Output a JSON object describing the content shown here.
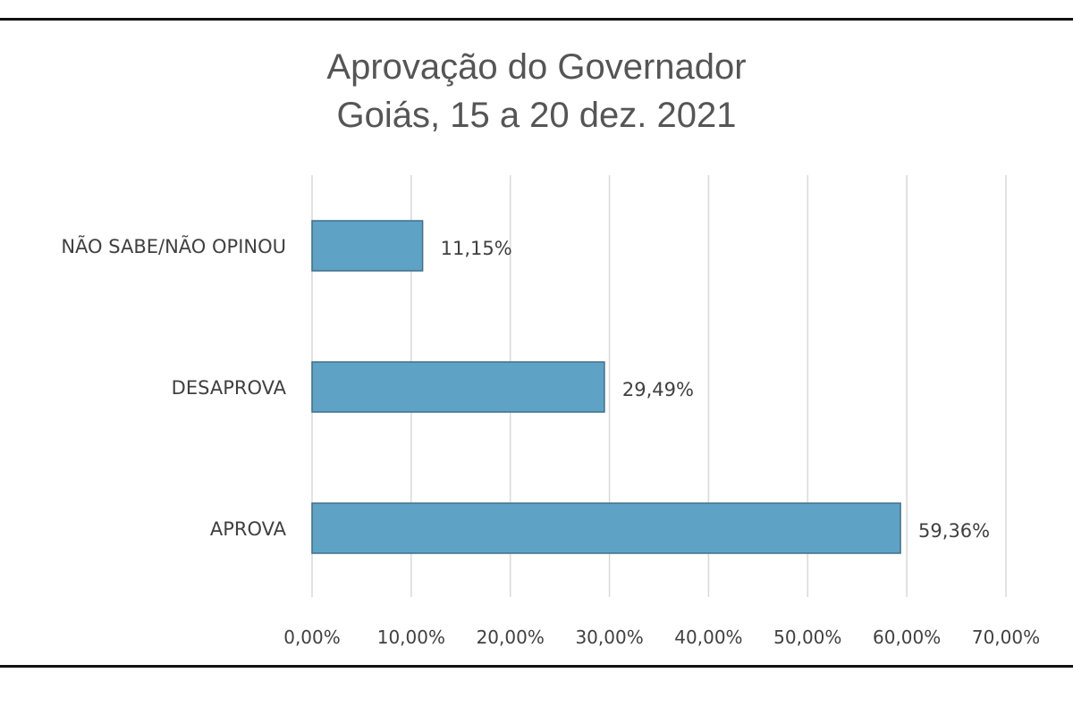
{
  "chart_data": {
    "type": "bar",
    "orientation": "horizontal",
    "title": "Aprovação do Governador",
    "subtitle": "Goiás, 15 a 20 dez. 2021",
    "categories": [
      "NÃO SABE/NÃO OPINOU",
      "DESAPROVA",
      "APROVA"
    ],
    "values": [
      11.15,
      29.49,
      59.36
    ],
    "data_labels": [
      "11,15%",
      "29,49%",
      "59,36%"
    ],
    "xlim": [
      0,
      70
    ],
    "x_ticks": [
      0,
      10,
      20,
      30,
      40,
      50,
      60,
      70
    ],
    "x_tick_labels": [
      "0,00%",
      "10,00%",
      "20,00%",
      "30,00%",
      "40,00%",
      "50,00%",
      "60,00%",
      "70,00%"
    ],
    "xlabel": "",
    "ylabel": "",
    "grid": true,
    "colors": {
      "bar_fill": "#5ea3c6",
      "bar_stroke": "#3e6f89",
      "grid": "#d9d9d9"
    }
  }
}
